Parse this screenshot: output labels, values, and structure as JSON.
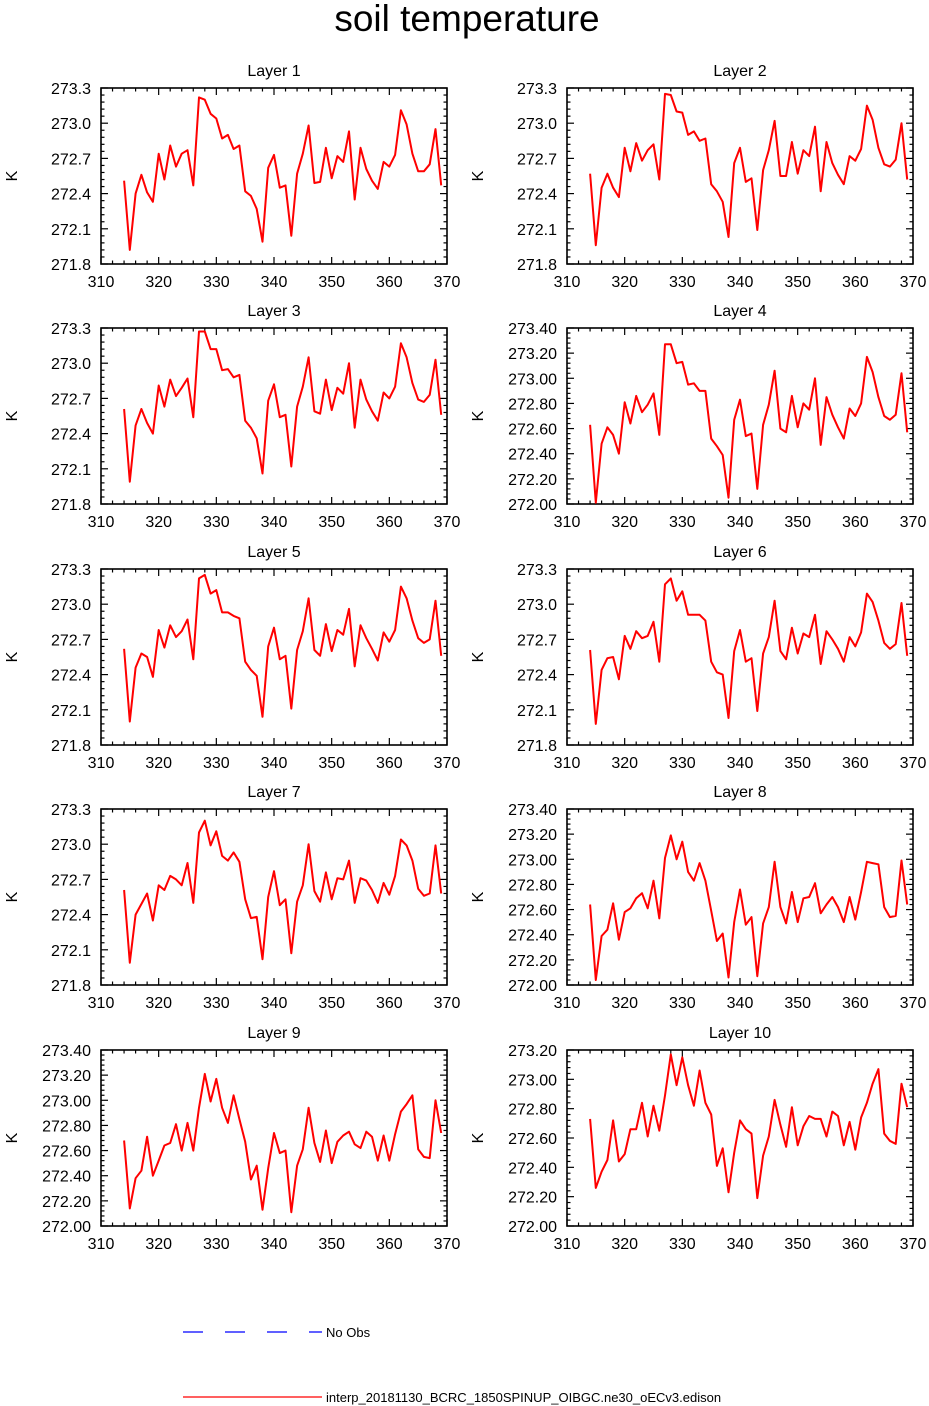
{
  "chart_data": {
    "type": "line",
    "title": "soil temperature",
    "xlabel": "",
    "ylabel": "K",
    "xlim": [
      310,
      370
    ],
    "x_ticks": [
      "310",
      "320",
      "330",
      "340",
      "350",
      "360",
      "370"
    ],
    "x_start": 314,
    "x_step": 1,
    "series_name": "interp_20181130_BCRC_1850SPINUP_OIBGC.ne30_oECv3.edison",
    "series_color": "#ff0000",
    "panels": [
      {
        "title": "Layer 1",
        "ylim": [
          271.8,
          273.3
        ],
        "y_ticks": [
          "271.8",
          "272.1",
          "272.4",
          "272.7",
          "273.0",
          "273.3"
        ],
        "values": [
          272.51,
          271.92,
          272.4,
          272.56,
          272.41,
          272.33,
          272.74,
          272.52,
          272.81,
          272.63,
          272.74,
          272.77,
          272.47,
          273.22,
          273.2,
          273.08,
          273.04,
          272.87,
          272.9,
          272.78,
          272.81,
          272.42,
          272.38,
          272.27,
          271.99,
          272.62,
          272.73,
          272.45,
          272.47,
          272.04,
          272.57,
          272.74,
          272.98,
          272.49,
          272.5,
          272.79,
          272.53,
          272.72,
          272.67,
          272.93,
          272.35,
          272.79,
          272.61,
          272.51,
          272.44,
          272.67,
          272.63,
          272.73,
          273.11,
          272.99,
          272.74,
          272.59,
          272.59,
          272.65,
          272.95,
          272.47
        ]
      },
      {
        "title": "Layer 2",
        "ylim": [
          271.8,
          273.3
        ],
        "y_ticks": [
          "271.8",
          "272.1",
          "272.4",
          "272.7",
          "273.0",
          "273.3"
        ],
        "values": [
          272.57,
          271.96,
          272.45,
          272.57,
          272.45,
          272.37,
          272.79,
          272.59,
          272.83,
          272.68,
          272.77,
          272.82,
          272.52,
          273.25,
          273.24,
          273.1,
          273.09,
          272.9,
          272.93,
          272.85,
          272.87,
          272.48,
          272.42,
          272.33,
          272.03,
          272.66,
          272.79,
          272.5,
          272.53,
          272.09,
          272.6,
          272.77,
          273.02,
          272.55,
          272.55,
          272.84,
          272.57,
          272.77,
          272.72,
          272.97,
          272.42,
          272.84,
          272.66,
          272.56,
          272.48,
          272.72,
          272.68,
          272.78,
          273.15,
          273.03,
          272.79,
          272.65,
          272.63,
          272.69,
          273.0,
          272.52
        ]
      },
      {
        "title": "Layer 3",
        "ylim": [
          271.8,
          273.3
        ],
        "y_ticks": [
          "271.8",
          "272.1",
          "272.4",
          "272.7",
          "273.0",
          "273.3"
        ],
        "values": [
          272.61,
          271.99,
          272.47,
          272.61,
          272.49,
          272.4,
          272.81,
          272.63,
          272.86,
          272.72,
          272.79,
          272.87,
          272.54,
          273.27,
          273.27,
          273.12,
          273.12,
          272.94,
          272.95,
          272.88,
          272.9,
          272.51,
          272.45,
          272.36,
          272.06,
          272.68,
          272.82,
          272.54,
          272.56,
          272.12,
          272.63,
          272.8,
          273.05,
          272.59,
          272.57,
          272.86,
          272.6,
          272.79,
          272.74,
          273.0,
          272.45,
          272.86,
          272.69,
          272.59,
          272.51,
          272.75,
          272.7,
          272.8,
          273.17,
          273.05,
          272.83,
          272.69,
          272.67,
          272.73,
          273.03,
          272.56
        ]
      },
      {
        "title": "Layer 4",
        "ylim": [
          272.0,
          273.4
        ],
        "y_ticks": [
          "272.00",
          "272.20",
          "272.40",
          "272.60",
          "272.80",
          "273.00",
          "273.20",
          "273.40"
        ],
        "values": [
          272.63,
          272.01,
          272.48,
          272.61,
          272.55,
          272.4,
          272.81,
          272.64,
          272.86,
          272.73,
          272.79,
          272.88,
          272.55,
          273.27,
          273.27,
          273.12,
          273.13,
          272.95,
          272.96,
          272.9,
          272.9,
          272.52,
          272.46,
          272.39,
          272.05,
          272.67,
          272.83,
          272.54,
          272.56,
          272.12,
          272.63,
          272.79,
          273.06,
          272.6,
          272.57,
          272.86,
          272.61,
          272.8,
          272.75,
          273.0,
          272.47,
          272.85,
          272.71,
          272.61,
          272.52,
          272.76,
          272.7,
          272.8,
          273.17,
          273.05,
          272.85,
          272.7,
          272.67,
          272.71,
          273.04,
          272.57
        ]
      },
      {
        "title": "Layer 5",
        "ylim": [
          271.8,
          273.3
        ],
        "y_ticks": [
          "271.8",
          "272.1",
          "272.4",
          "272.7",
          "273.0",
          "273.3"
        ],
        "values": [
          272.62,
          272.0,
          272.46,
          272.58,
          272.55,
          272.38,
          272.78,
          272.63,
          272.82,
          272.72,
          272.77,
          272.87,
          272.53,
          273.22,
          273.25,
          273.09,
          273.12,
          272.93,
          272.93,
          272.9,
          272.88,
          272.51,
          272.44,
          272.39,
          272.04,
          272.64,
          272.8,
          272.53,
          272.56,
          272.11,
          272.61,
          272.77,
          273.05,
          272.61,
          272.56,
          272.83,
          272.6,
          272.78,
          272.74,
          272.96,
          272.47,
          272.82,
          272.71,
          272.62,
          272.52,
          272.76,
          272.68,
          272.78,
          273.15,
          273.05,
          272.86,
          272.71,
          272.67,
          272.7,
          273.03,
          272.56
        ]
      },
      {
        "title": "Layer 6",
        "ylim": [
          271.8,
          273.3
        ],
        "y_ticks": [
          "271.8",
          "272.1",
          "272.4",
          "272.7",
          "273.0",
          "273.3"
        ],
        "values": [
          272.61,
          271.98,
          272.44,
          272.54,
          272.55,
          272.36,
          272.73,
          272.62,
          272.77,
          272.71,
          272.73,
          272.85,
          272.51,
          273.17,
          273.22,
          273.03,
          273.11,
          272.91,
          272.91,
          272.91,
          272.86,
          272.51,
          272.42,
          272.4,
          272.03,
          272.6,
          272.78,
          272.51,
          272.54,
          272.09,
          272.58,
          272.72,
          273.03,
          272.6,
          272.53,
          272.8,
          272.58,
          272.75,
          272.72,
          272.91,
          272.49,
          272.77,
          272.7,
          272.62,
          272.51,
          272.72,
          272.64,
          272.76,
          273.09,
          273.02,
          272.86,
          272.67,
          272.62,
          272.66,
          273.01,
          272.56
        ]
      },
      {
        "title": "Layer 7",
        "ylim": [
          271.8,
          273.3
        ],
        "y_ticks": [
          "271.8",
          "272.1",
          "272.4",
          "272.7",
          "273.0",
          "273.3"
        ],
        "values": [
          272.61,
          271.99,
          272.4,
          272.49,
          272.58,
          272.35,
          272.65,
          272.61,
          272.73,
          272.7,
          272.65,
          272.84,
          272.5,
          273.1,
          273.2,
          272.99,
          273.11,
          272.9,
          272.86,
          272.93,
          272.85,
          272.53,
          272.37,
          272.38,
          272.02,
          272.55,
          272.77,
          272.48,
          272.53,
          272.07,
          272.51,
          272.65,
          273.0,
          272.6,
          272.51,
          272.76,
          272.53,
          272.71,
          272.7,
          272.86,
          272.5,
          272.71,
          272.69,
          272.61,
          272.5,
          272.67,
          272.57,
          272.73,
          273.04,
          272.99,
          272.86,
          272.62,
          272.56,
          272.58,
          272.99,
          272.58
        ]
      },
      {
        "title": "Layer 8",
        "ylim": [
          272.0,
          273.4
        ],
        "y_ticks": [
          "272.00",
          "272.20",
          "272.40",
          "272.60",
          "272.80",
          "273.00",
          "273.20",
          "273.40"
        ],
        "values": [
          272.64,
          272.04,
          272.39,
          272.44,
          272.65,
          272.36,
          272.58,
          272.61,
          272.69,
          272.73,
          272.61,
          272.83,
          272.53,
          273.01,
          273.19,
          273.0,
          273.14,
          272.9,
          272.83,
          272.97,
          272.83,
          272.59,
          272.35,
          272.41,
          272.06,
          272.5,
          272.76,
          272.48,
          272.54,
          272.07,
          272.49,
          272.62,
          272.98,
          272.62,
          272.49,
          272.74,
          272.5,
          272.69,
          272.7,
          272.81,
          272.57,
          272.64,
          272.7,
          272.62,
          272.5,
          272.7,
          272.52,
          272.74,
          272.98,
          272.97,
          272.96,
          272.62,
          272.54,
          272.55,
          272.99,
          272.64
        ]
      },
      {
        "title": "Layer 9",
        "ylim": [
          272.0,
          273.4
        ],
        "y_ticks": [
          "272.00",
          "272.20",
          "272.40",
          "272.60",
          "272.80",
          "273.00",
          "273.20",
          "273.40"
        ],
        "values": [
          272.68,
          272.14,
          272.38,
          272.44,
          272.71,
          272.4,
          272.52,
          272.64,
          272.66,
          272.81,
          272.6,
          272.82,
          272.6,
          272.94,
          273.21,
          272.99,
          273.17,
          272.94,
          272.82,
          273.04,
          272.85,
          272.67,
          272.37,
          272.48,
          272.13,
          272.46,
          272.74,
          272.58,
          272.6,
          272.11,
          272.48,
          272.61,
          272.94,
          272.66,
          272.51,
          272.76,
          272.5,
          272.67,
          272.72,
          272.75,
          272.65,
          272.62,
          272.75,
          272.71,
          272.52,
          272.72,
          272.52,
          272.73,
          272.91,
          272.97,
          273.04,
          272.61,
          272.55,
          272.54,
          273.0,
          272.74
        ]
      },
      {
        "title": "Layer 10",
        "ylim": [
          272.0,
          273.2
        ],
        "y_ticks": [
          "272.00",
          "272.20",
          "272.40",
          "272.60",
          "272.80",
          "273.00",
          "273.20"
        ],
        "values": [
          272.73,
          272.26,
          272.37,
          272.45,
          272.72,
          272.44,
          272.49,
          272.66,
          272.66,
          272.84,
          272.61,
          272.82,
          272.65,
          272.89,
          273.17,
          272.96,
          273.15,
          272.96,
          272.82,
          273.06,
          272.84,
          272.76,
          272.41,
          272.53,
          272.23,
          272.5,
          272.72,
          272.66,
          272.63,
          272.19,
          272.48,
          272.61,
          272.86,
          272.69,
          272.54,
          272.81,
          272.55,
          272.68,
          272.75,
          272.73,
          272.73,
          272.61,
          272.78,
          272.75,
          272.55,
          272.71,
          272.52,
          272.74,
          272.84,
          272.97,
          273.07,
          272.63,
          272.58,
          272.56,
          272.97,
          272.81
        ]
      }
    ],
    "legend": [
      {
        "label": "No Obs",
        "style": "dashed",
        "color": "#0000ff"
      },
      {
        "label": "interp_20181130_BCRC_1850SPINUP_OIBGC.ne30_oECv3.edison",
        "style": "solid",
        "color": "#ff0000"
      }
    ]
  }
}
